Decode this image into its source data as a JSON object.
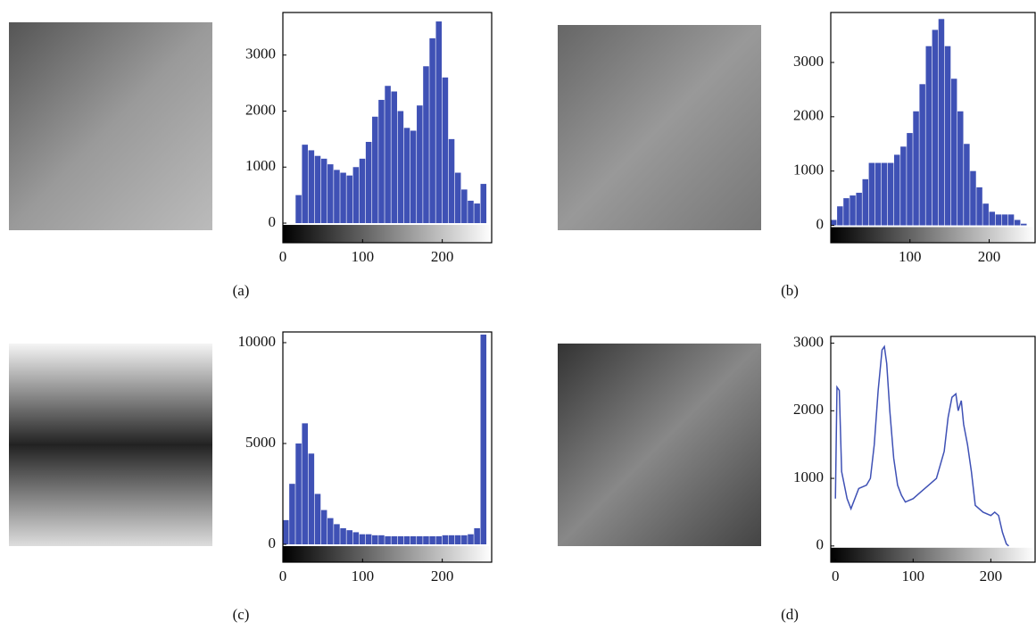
{
  "chart_data": [
    {
      "type": "histogram",
      "caption": "(a)",
      "color": "#3f51b5",
      "bins": [
        0,
        8,
        16,
        24,
        32,
        40,
        48,
        56,
        64,
        72,
        80,
        88,
        96,
        104,
        112,
        120,
        128,
        136,
        144,
        152,
        160,
        168,
        176,
        184,
        192,
        200,
        208,
        216,
        224,
        232,
        240,
        248,
        256
      ],
      "values": [
        0,
        0,
        500,
        1400,
        1300,
        1200,
        1150,
        1050,
        950,
        900,
        850,
        1000,
        1150,
        1450,
        1900,
        2200,
        2450,
        2350,
        2000,
        1700,
        1650,
        2100,
        2800,
        3300,
        3600,
        2600,
        1500,
        900,
        600,
        400,
        350,
        700
      ],
      "xlim": [
        0,
        262
      ],
      "ylim": [
        -350,
        3760
      ],
      "xticks": [
        0,
        100,
        200
      ],
      "yticks": [
        0,
        1000,
        2000,
        3000
      ]
    },
    {
      "type": "histogram",
      "caption": "(b)",
      "color": "#3f51b5",
      "bins": [
        0,
        8,
        16,
        24,
        32,
        40,
        48,
        56,
        64,
        72,
        80,
        88,
        96,
        104,
        112,
        120,
        128,
        136,
        144,
        152,
        160,
        168,
        176,
        184,
        192,
        200,
        208,
        216,
        224,
        232,
        240,
        248,
        256
      ],
      "values": [
        100,
        350,
        500,
        550,
        600,
        850,
        1150,
        1150,
        1150,
        1150,
        1300,
        1450,
        1700,
        2100,
        2600,
        3300,
        3600,
        3800,
        3300,
        2700,
        2100,
        1500,
        1000,
        700,
        400,
        250,
        200,
        200,
        200,
        100,
        30,
        0
      ],
      "xlim": [
        0,
        258
      ],
      "ylim": [
        -320,
        3920
      ],
      "xticks": [
        100,
        200
      ],
      "yticks": [
        0,
        1000,
        2000,
        3000
      ]
    },
    {
      "type": "histogram",
      "caption": "(c)",
      "color": "#3f51b5",
      "bins": [
        0,
        8,
        16,
        24,
        32,
        40,
        48,
        56,
        64,
        72,
        80,
        88,
        96,
        104,
        112,
        120,
        128,
        136,
        144,
        152,
        160,
        168,
        176,
        184,
        192,
        200,
        208,
        216,
        224,
        232,
        240,
        248,
        256
      ],
      "values": [
        1200,
        3000,
        5000,
        6000,
        4500,
        2500,
        1700,
        1300,
        1000,
        800,
        700,
        600,
        500,
        500,
        450,
        450,
        400,
        400,
        400,
        400,
        400,
        400,
        400,
        400,
        400,
        450,
        450,
        450,
        450,
        500,
        800,
        10400
      ],
      "xlim": [
        0,
        262
      ],
      "ylim": [
        -885,
        10530
      ],
      "xticks": [
        0,
        100,
        200
      ],
      "yticks": [
        0,
        5000,
        10000
      ]
    },
    {
      "type": "line",
      "caption": "(d)",
      "color": "#3f51b5",
      "x": [
        0,
        2,
        5,
        8,
        15,
        20,
        25,
        30,
        40,
        45,
        50,
        55,
        60,
        63,
        66,
        70,
        75,
        80,
        85,
        90,
        100,
        110,
        120,
        130,
        140,
        145,
        150,
        155,
        158,
        162,
        165,
        170,
        175,
        180,
        190,
        200,
        205,
        210,
        215,
        220,
        223
      ],
      "values": [
        700,
        2350,
        2300,
        1100,
        700,
        550,
        700,
        850,
        900,
        1000,
        1500,
        2300,
        2900,
        2950,
        2700,
        2000,
        1300,
        900,
        750,
        650,
        700,
        800,
        900,
        1000,
        1400,
        1900,
        2200,
        2250,
        2000,
        2150,
        1800,
        1500,
        1100,
        600,
        500,
        450,
        500,
        450,
        200,
        30,
        0
      ],
      "xlim": [
        -6,
        257
      ],
      "ylim": [
        -240,
        3100
      ],
      "xticks": [
        0,
        100,
        200
      ],
      "yticks": [
        0,
        1000,
        2000,
        3000
      ]
    }
  ]
}
